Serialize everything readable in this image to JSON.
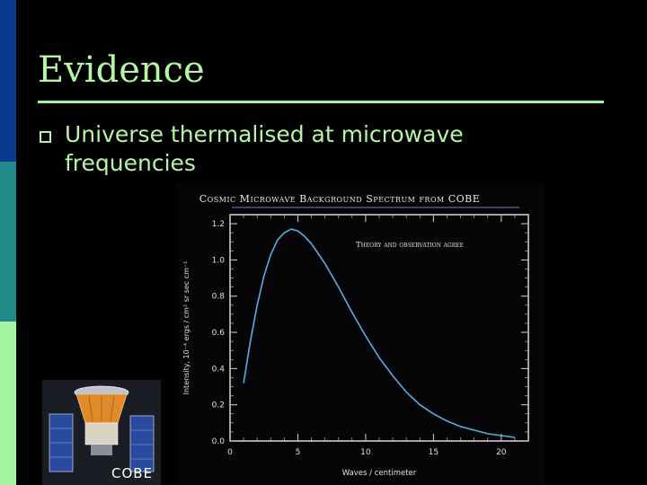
{
  "slide": {
    "title": "Evidence",
    "bullet": "Universe thermalised at microwave frequencies"
  },
  "image_caption": "COBE",
  "colors": {
    "title": "#b5f5a6",
    "background": "#000000",
    "stripe_top": "#0a3a8f",
    "stripe_mid": "#1f8a88",
    "stripe_bottom": "#a6f5a3",
    "curve": "#5aaee0"
  },
  "chart_data": {
    "type": "line",
    "title": "Cosmic Microwave Background Spectrum from COBE",
    "annotation": "Theory and observation agree",
    "xlabel": "Waves / centimeter",
    "ylabel": "Intensity, 10⁻⁴ ergs / cm² sr sec cm⁻¹",
    "xlim": [
      0,
      22
    ],
    "ylim": [
      0,
      1.25
    ],
    "x_ticks": [
      0,
      5,
      10,
      15,
      20
    ],
    "x_tick_labels": [
      "0",
      "5",
      "10",
      "15",
      "20"
    ],
    "y_ticks": [
      0,
      0.2,
      0.4,
      0.6,
      0.8,
      1.0,
      1.2
    ],
    "y_tick_labels": [
      "0.0",
      "0.2",
      "0.4",
      "0.6",
      "0.8",
      "1.0",
      "1.2"
    ],
    "series": [
      {
        "x": [
          1,
          1.5,
          2,
          2.5,
          3,
          3.5,
          4,
          4.5,
          5,
          5.5,
          6,
          7,
          8,
          9,
          10,
          11,
          12,
          13,
          14,
          15,
          16,
          17,
          18,
          19,
          20,
          21
        ],
        "values": [
          0.32,
          0.55,
          0.75,
          0.91,
          1.03,
          1.11,
          1.15,
          1.17,
          1.16,
          1.13,
          1.09,
          0.98,
          0.85,
          0.71,
          0.58,
          0.46,
          0.36,
          0.27,
          0.2,
          0.15,
          0.11,
          0.08,
          0.06,
          0.04,
          0.03,
          0.02
        ]
      }
    ]
  }
}
